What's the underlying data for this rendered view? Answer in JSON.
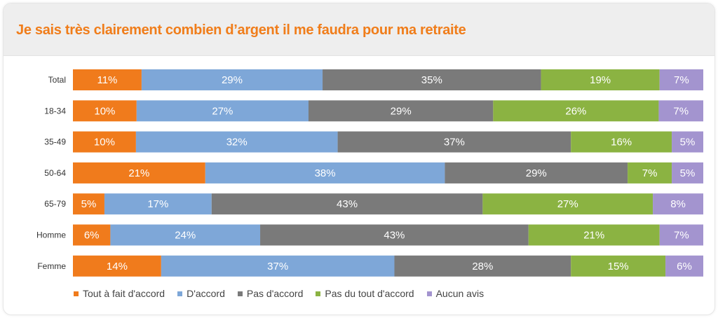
{
  "title": "Je sais très clairement combien d’argent il me faudra pour ma retraite",
  "chart_data": {
    "type": "bar",
    "orientation": "horizontal",
    "stacked": true,
    "percent_stacked": true,
    "title": "Je sais très clairement combien d’argent il me faudra pour ma retraite",
    "categories": [
      "Total",
      "18-34",
      "35-49",
      "50-64",
      "65-79",
      "Homme",
      "Femme"
    ],
    "series": [
      {
        "name": "Tout à fait d'accord",
        "color": "#f07b1c",
        "values": [
          11,
          10,
          10,
          21,
          5,
          6,
          14
        ]
      },
      {
        "name": "D'accord",
        "color": "#7ea7d8",
        "values": [
          29,
          27,
          32,
          38,
          17,
          24,
          37
        ]
      },
      {
        "name": "Pas d'accord",
        "color": "#7a7a7a",
        "values": [
          35,
          29,
          37,
          29,
          43,
          43,
          28
        ]
      },
      {
        "name": "Pas du tout d'accord",
        "color": "#8bb342",
        "values": [
          19,
          26,
          16,
          7,
          27,
          21,
          15
        ]
      },
      {
        "name": "Aucun avis",
        "color": "#a394cf",
        "values": [
          7,
          7,
          5,
          5,
          8,
          7,
          6
        ]
      }
    ],
    "value_suffix": "%",
    "legend_position": "bottom-left",
    "grid": false
  }
}
